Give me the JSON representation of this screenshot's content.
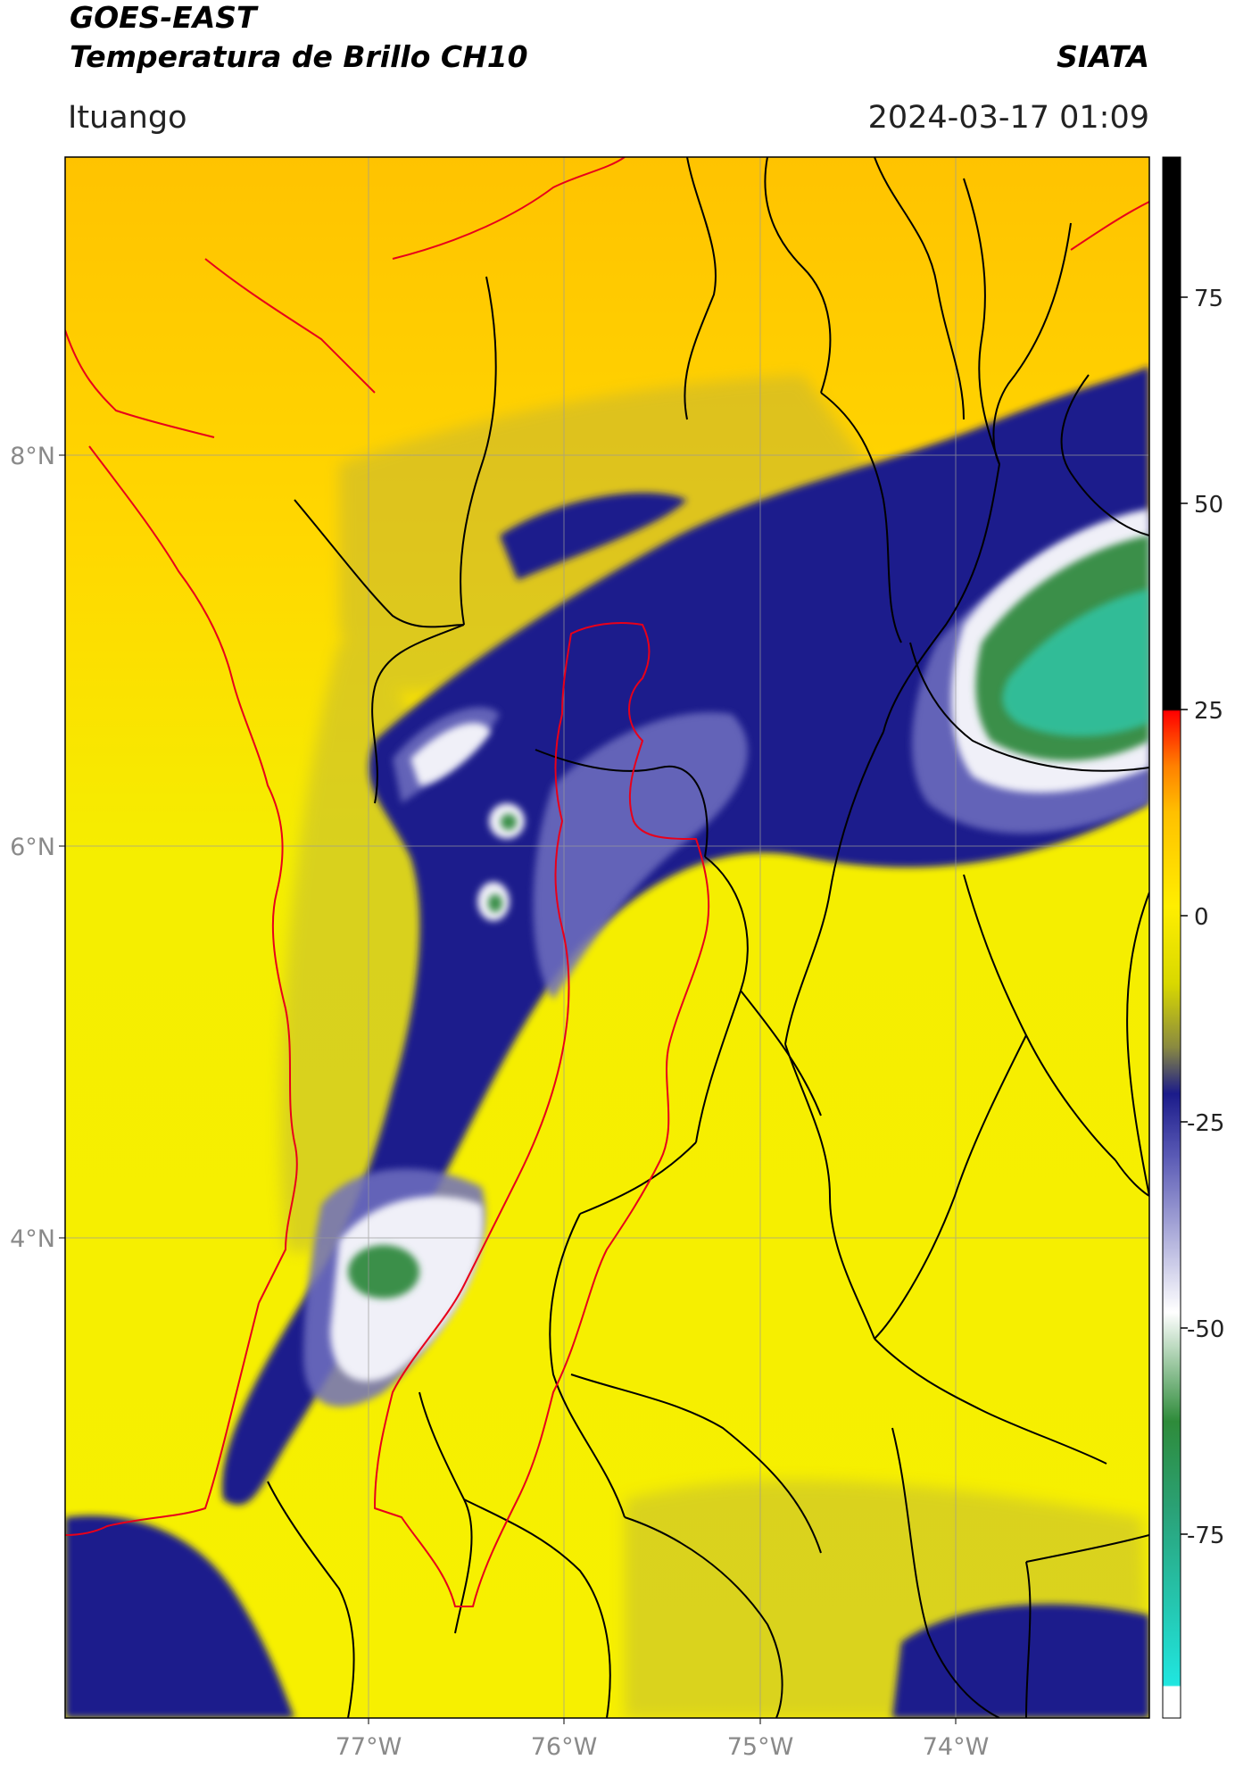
{
  "header": {
    "title_line1": "GOES-EAST",
    "title_line2": "Temperatura de Brillo CH10",
    "organization": "SIATA",
    "region": "Ituango",
    "timestamp": "2024-03-17 01:09"
  },
  "map": {
    "lat_labels": [
      "8°N",
      "6°N",
      "4°N"
    ],
    "lon_labels": [
      "77°W",
      "76°W",
      "75°W",
      "74°W"
    ],
    "border_color_outer": "#000000",
    "border_color_region": "#e8001a"
  },
  "colorbar": {
    "tick_labels": [
      "75",
      "50",
      "25",
      "0",
      "-25",
      "-50",
      "-75"
    ],
    "colors": {
      "hot": "#000000",
      "warm": "#ff0000",
      "mild": "#ffee00",
      "cool": "#1b1b8a",
      "cold": "#ffffff",
      "very_cold": "#2e8b3a",
      "coldest": "#20e6e0"
    }
  }
}
